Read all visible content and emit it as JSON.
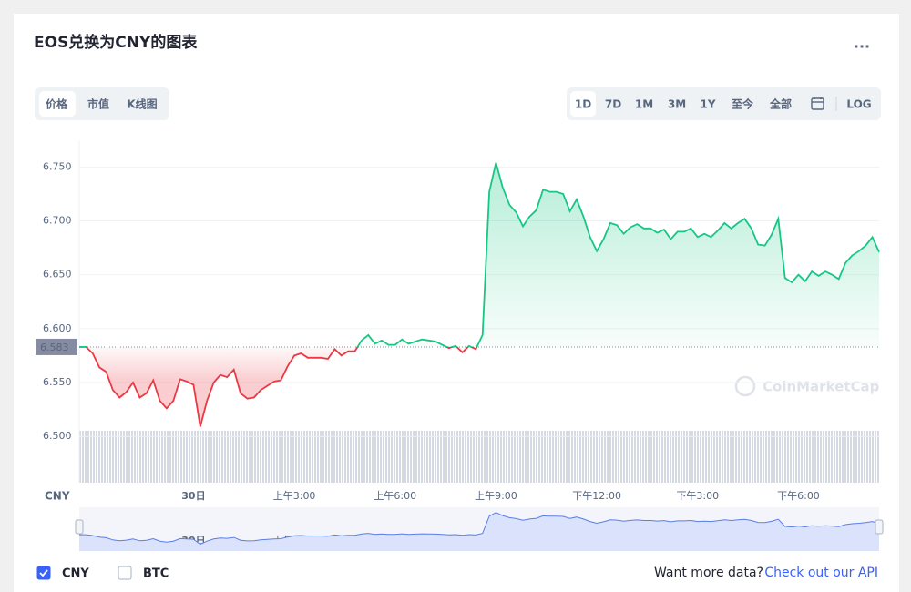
{
  "title": "EOS兑换为CNY的图表",
  "more_label": "...",
  "tabs": [
    "价格",
    "市值",
    "K线图"
  ],
  "active_tab": 0,
  "ranges": [
    "1D",
    "7D",
    "1M",
    "3M",
    "1Y",
    "至今",
    "全部"
  ],
  "active_range": 0,
  "log": "LOG",
  "chart_data": {
    "type": "line",
    "currency_label": "CNY",
    "watermark": "CoinMarketCap",
    "x": [
      -3.4,
      -3.2,
      -3.0,
      -2.8,
      -2.6,
      -2.4,
      -2.2,
      -2.0,
      -1.8,
      -1.6,
      -1.4,
      -1.2,
      -1.0,
      -0.8,
      -0.6,
      -0.4,
      -0.2,
      0.0,
      0.2,
      0.4,
      0.6,
      0.8,
      1.0,
      1.2,
      1.4,
      1.6,
      1.8,
      2.0,
      2.2,
      2.4,
      2.6,
      2.8,
      3.0,
      3.2,
      3.4,
      3.6,
      3.8,
      4.0,
      4.2,
      4.4,
      4.6,
      4.8,
      5.0,
      5.2,
      5.4,
      5.6,
      5.8,
      6.0,
      6.2,
      6.4,
      6.6,
      6.8,
      7.0,
      7.2,
      7.4,
      7.6,
      7.8,
      8.0,
      8.2,
      8.4,
      8.6,
      8.8,
      9.0,
      9.2,
      9.4,
      9.6,
      9.8,
      10.0,
      10.2,
      10.4,
      10.6,
      10.8,
      11.0,
      11.2,
      11.4,
      11.6,
      11.8,
      12.0,
      12.2,
      12.4,
      12.6,
      12.8,
      13.0,
      13.2,
      13.4,
      13.6,
      13.8,
      14.0,
      14.2,
      14.4,
      14.6,
      14.8,
      15.0,
      15.2,
      15.4,
      15.6,
      15.8,
      16.0,
      16.2,
      16.4,
      16.6,
      16.8,
      17.0,
      17.2,
      17.4,
      17.6,
      17.8,
      18.0,
      18.2,
      18.4,
      18.6,
      18.8,
      19.0,
      19.2,
      19.4,
      19.6,
      19.8,
      20.0,
      20.2,
      20.4
    ],
    "series": [
      {
        "name": "CNY",
        "color_up": "#16c784",
        "color_down": "#ea3943",
        "values": [
          6.583,
          6.583,
          6.577,
          6.564,
          6.56,
          6.543,
          6.536,
          6.541,
          6.55,
          6.536,
          6.54,
          6.552,
          6.533,
          6.526,
          6.533,
          6.553,
          6.551,
          6.548,
          6.509,
          6.533,
          6.55,
          6.557,
          6.555,
          6.562,
          6.54,
          6.535,
          6.536,
          6.543,
          6.547,
          6.551,
          6.552,
          6.565,
          6.575,
          6.577,
          6.573,
          6.573,
          6.573,
          6.572,
          6.581,
          6.575,
          6.579,
          6.579,
          6.589,
          6.594,
          6.586,
          6.589,
          6.585,
          6.585,
          6.59,
          6.586,
          6.588,
          6.59,
          6.589,
          6.588,
          6.585,
          6.582,
          6.584,
          6.578,
          6.584,
          6.581,
          6.594,
          6.727,
          6.754,
          6.731,
          6.715,
          6.708,
          6.695,
          6.704,
          6.71,
          6.729,
          6.727,
          6.727,
          6.725,
          6.709,
          6.72,
          6.704,
          6.685,
          6.672,
          6.683,
          6.698,
          6.696,
          6.688,
          6.694,
          6.697,
          6.693,
          6.693,
          6.689,
          6.692,
          6.683,
          6.69,
          6.69,
          6.693,
          6.685,
          6.688,
          6.685,
          6.691,
          6.698,
          6.693,
          6.698,
          6.702,
          6.693,
          6.678,
          6.677,
          6.687,
          6.702,
          6.647,
          6.643,
          6.65,
          6.644,
          6.653,
          6.649,
          6.653,
          6.65,
          6.646,
          6.661,
          6.668,
          6.672,
          6.677,
          6.685,
          6.671
        ]
      }
    ],
    "baseline": 6.583,
    "xlim": [
      -3.4,
      20.4
    ],
    "xticks": [
      {
        "value": 0,
        "label": "30日"
      },
      {
        "value": 3,
        "label": "上午3:00"
      },
      {
        "value": 6,
        "label": "上午6:00"
      },
      {
        "value": 9,
        "label": "上午9:00"
      },
      {
        "value": 12,
        "label": "下午12:00"
      },
      {
        "value": 15,
        "label": "下午3:00"
      },
      {
        "value": 18,
        "label": "下午6:00"
      }
    ],
    "ylim": [
      6.457,
      6.774
    ],
    "yticks": [
      {
        "value": 6.5,
        "label": "6.500"
      },
      {
        "value": 6.55,
        "label": "6.550"
      },
      {
        "value": 6.6,
        "label": "6.600"
      },
      {
        "value": 6.65,
        "label": "6.650"
      },
      {
        "value": 6.7,
        "label": "6.700"
      },
      {
        "value": 6.75,
        "label": "6.750"
      }
    ],
    "grid": true
  },
  "footer": {
    "options": [
      {
        "label": "CNY",
        "checked": true
      },
      {
        "label": "BTC",
        "checked": false
      }
    ],
    "prompt": "Want more data?",
    "link": "Check out our API"
  }
}
